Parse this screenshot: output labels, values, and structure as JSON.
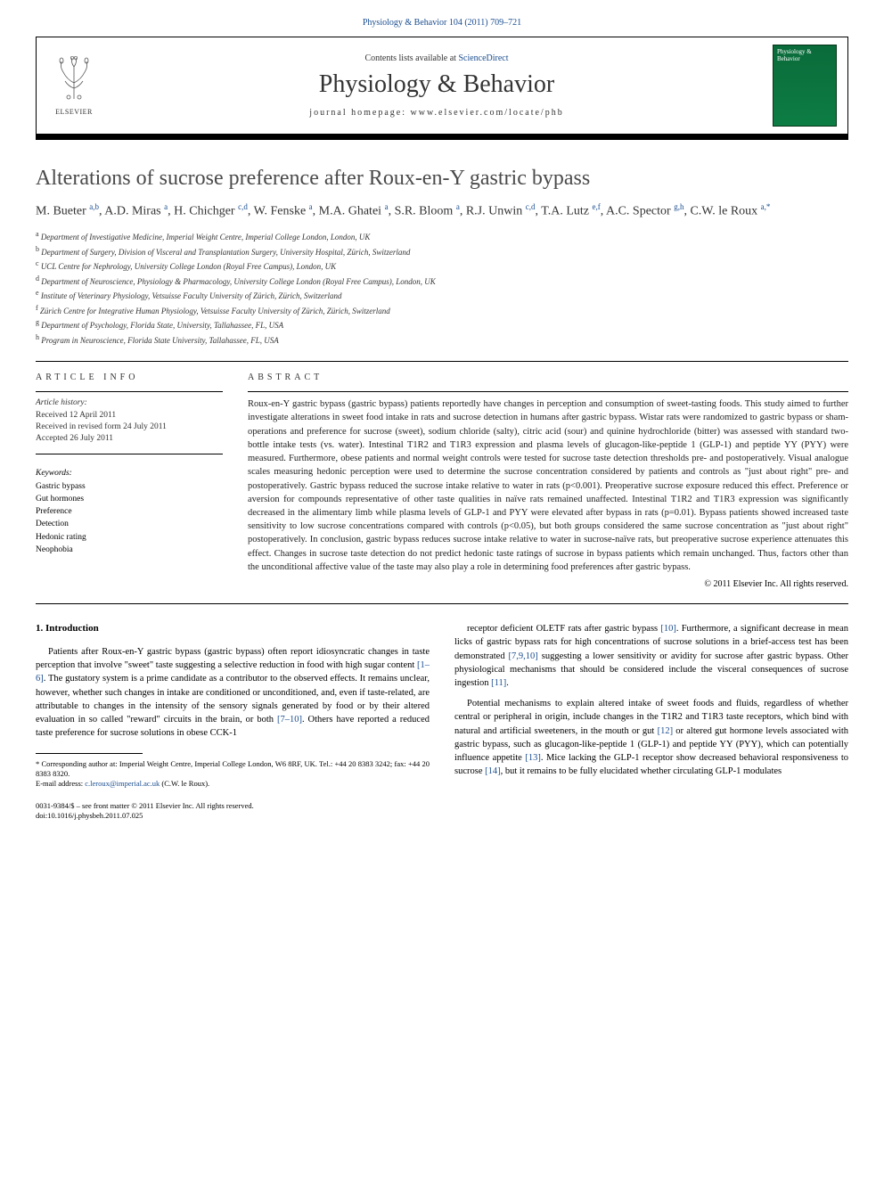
{
  "top_link": "Physiology & Behavior 104 (2011) 709–721",
  "header": {
    "contents_prefix": "Contents lists available at ",
    "contents_link": "ScienceDirect",
    "journal_name": "Physiology & Behavior",
    "homepage_label": "journal homepage: www.elsevier.com/locate/phb",
    "publisher": "ELSEVIER",
    "cover_text": "Physiology & Behavior"
  },
  "title": "Alterations of sucrose preference after Roux-en-Y gastric bypass",
  "authors_html": "M. Bueter <sup>a,b</sup>, A.D. Miras <sup>a</sup>, H. Chichger <sup>c,d</sup>, W. Fenske <sup>a</sup>, M.A. Ghatei <sup>a</sup>, S.R. Bloom <sup>a</sup>, R.J. Unwin <sup>c,d</sup>, T.A. Lutz <sup>e,f</sup>, A.C. Spector <sup>g,h</sup>, C.W. le Roux <sup>a,*</sup>",
  "affiliations": [
    {
      "sup": "a",
      "text": "Department of Investigative Medicine, Imperial Weight Centre, Imperial College London, London, UK"
    },
    {
      "sup": "b",
      "text": "Department of Surgery, Division of Visceral and Transplantation Surgery, University Hospital, Zürich, Switzerland"
    },
    {
      "sup": "c",
      "text": "UCL Centre for Nephrology, University College London (Royal Free Campus), London, UK"
    },
    {
      "sup": "d",
      "text": "Department of Neuroscience, Physiology & Pharmacology, University College London (Royal Free Campus), London, UK"
    },
    {
      "sup": "e",
      "text": "Institute of Veterinary Physiology, Vetsuisse Faculty University of Zürich, Zürich, Switzerland"
    },
    {
      "sup": "f",
      "text": "Zürich Centre for Integrative Human Physiology, Vetsuisse Faculty University of Zürich, Zürich, Switzerland"
    },
    {
      "sup": "g",
      "text": "Department of Psychology, Florida State, University, Tallahassee, FL, USA"
    },
    {
      "sup": "h",
      "text": "Program in Neuroscience, Florida State University, Tallahassee, FL, USA"
    }
  ],
  "article_info": {
    "label": "ARTICLE INFO",
    "history_label": "Article history:",
    "received": "Received 12 April 2011",
    "revised": "Received in revised form 24 July 2011",
    "accepted": "Accepted 26 July 2011",
    "keywords_label": "Keywords:",
    "keywords": [
      "Gastric bypass",
      "Gut hormones",
      "Preference",
      "Detection",
      "Hedonic rating",
      "Neophobia"
    ]
  },
  "abstract": {
    "label": "ABSTRACT",
    "text": "Roux-en-Y gastric bypass (gastric bypass) patients reportedly have changes in perception and consumption of sweet-tasting foods. This study aimed to further investigate alterations in sweet food intake in rats and sucrose detection in humans after gastric bypass. Wistar rats were randomized to gastric bypass or sham-operations and preference for sucrose (sweet), sodium chloride (salty), citric acid (sour) and quinine hydrochloride (bitter) was assessed with standard two-bottle intake tests (vs. water). Intestinal T1R2 and T1R3 expression and plasma levels of glucagon-like-peptide 1 (GLP-1) and peptide YY (PYY) were measured. Furthermore, obese patients and normal weight controls were tested for sucrose taste detection thresholds pre- and postoperatively. Visual analogue scales measuring hedonic perception were used to determine the sucrose concentration considered by patients and controls as \"just about right\" pre- and postoperatively. Gastric bypass reduced the sucrose intake relative to water in rats (p<0.001). Preoperative sucrose exposure reduced this effect. Preference or aversion for compounds representative of other taste qualities in naïve rats remained unaffected. Intestinal T1R2 and T1R3 expression was significantly decreased in the alimentary limb while plasma levels of GLP-1 and PYY were elevated after bypass in rats (p=0.01). Bypass patients showed increased taste sensitivity to low sucrose concentrations compared with controls (p<0.05), but both groups considered the same sucrose concentration as \"just about right\" postoperatively. In conclusion, gastric bypass reduces sucrose intake relative to water in sucrose-naïve rats, but preoperative sucrose experience attenuates this effect. Changes in sucrose taste detection do not predict hedonic taste ratings of sucrose in bypass patients which remain unchanged. Thus, factors other than the unconditional affective value of the taste may also play a role in determining food preferences after gastric bypass.",
    "copyright": "© 2011 Elsevier Inc. All rights reserved."
  },
  "intro": {
    "heading": "1. Introduction",
    "col1": [
      "Patients after Roux-en-Y gastric bypass (gastric bypass) often report idiosyncratic changes in taste perception that involve \"sweet\" taste suggesting a selective reduction in food with high sugar content [1–6]. The gustatory system is a prime candidate as a contributor to the observed effects. It remains unclear, however, whether such changes in intake are conditioned or unconditioned, and, even if taste-related, are attributable to changes in the intensity of the sensory signals generated by food or by their altered evaluation in so called \"reward\" circuits in the brain, or both [7–10]. Others have reported a reduced taste preference for sucrose solutions in obese CCK-1"
    ],
    "col2": [
      "receptor deficient OLETF rats after gastric bypass [10]. Furthermore, a significant decrease in mean licks of gastric bypass rats for high concentrations of sucrose solutions in a brief-access test has been demonstrated [7,9,10] suggesting a lower sensitivity or avidity for sucrose after gastric bypass. Other physiological mechanisms that should be considered include the visceral consequences of sucrose ingestion [11].",
      "Potential mechanisms to explain altered intake of sweet foods and fluids, regardless of whether central or peripheral in origin, include changes in the T1R2 and T1R3 taste receptors, which bind with natural and artificial sweeteners, in the mouth or gut [12] or altered gut hormone levels associated with gastric bypass, such as glucagon-like-peptide 1 (GLP-1) and peptide YY (PYY), which can potentially influence appetite [13]. Mice lacking the GLP-1 receptor show decreased behavioral responsiveness to sucrose [14], but it remains to be fully elucidated whether circulating GLP-1 modulates"
    ]
  },
  "footnotes": {
    "corresponding": "* Corresponding author at: Imperial Weight Centre, Imperial College London, W6 8RF, UK. Tel.: +44 20 8383 3242; fax: +44 20 8383 8320.",
    "email_label": "E-mail address: ",
    "email": "c.leroux@imperial.ac.uk",
    "email_suffix": " (C.W. le Roux)."
  },
  "bottom": {
    "issn": "0031-9384/$ – see front matter © 2011 Elsevier Inc. All rights reserved.",
    "doi": "doi:10.1016/j.physbeh.2011.07.025"
  },
  "colors": {
    "link": "#1a4d8f",
    "text": "#222222",
    "cover_bg": "#0a6b3a",
    "border": "#000000"
  }
}
